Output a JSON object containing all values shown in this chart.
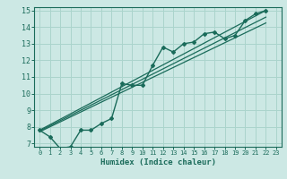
{
  "xlabel": "Humidex (Indice chaleur)",
  "bg_color": "#cce8e4",
  "grid_color": "#aad4cc",
  "line_color": "#1a6b5a",
  "xlim": [
    -0.5,
    23.5
  ],
  "ylim": [
    6.8,
    15.2
  ],
  "xticks": [
    0,
    1,
    2,
    3,
    4,
    5,
    6,
    7,
    8,
    9,
    10,
    11,
    12,
    13,
    14,
    15,
    16,
    17,
    18,
    19,
    20,
    21,
    22,
    23
  ],
  "yticks": [
    7,
    8,
    9,
    10,
    11,
    12,
    13,
    14,
    15
  ],
  "curve1_x": [
    0,
    1,
    2,
    3,
    4,
    5,
    6,
    7,
    8,
    9,
    10,
    11,
    12,
    13,
    14,
    15,
    16,
    17,
    18,
    19,
    20,
    21,
    22
  ],
  "curve1_y": [
    7.8,
    7.4,
    6.7,
    6.8,
    7.8,
    7.8,
    8.2,
    8.5,
    10.6,
    10.5,
    10.5,
    11.7,
    12.8,
    12.5,
    13.0,
    13.1,
    13.6,
    13.7,
    13.3,
    13.5,
    14.4,
    14.8,
    15.0
  ],
  "line1_x": [
    0,
    22
  ],
  "line1_y": [
    7.8,
    15.0
  ],
  "line2_x": [
    0,
    22
  ],
  "line2_y": [
    7.75,
    14.6
  ],
  "line3_x": [
    0,
    22
  ],
  "line3_y": [
    7.7,
    14.25
  ]
}
